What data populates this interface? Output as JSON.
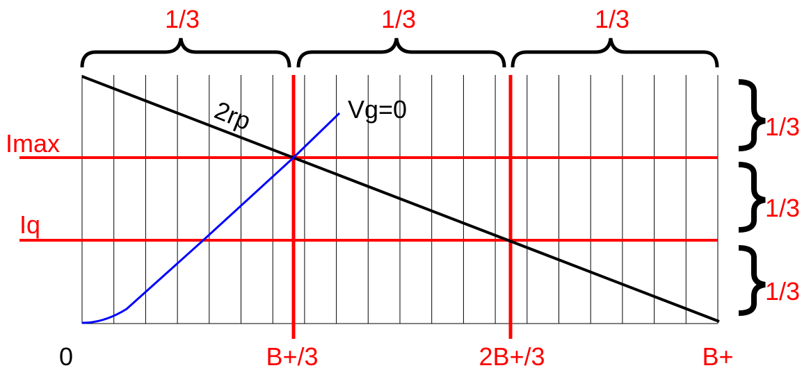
{
  "colors": {
    "grid": "#000000",
    "load_line": "#000000",
    "guides": "#ff0000",
    "curve": "#0000ff",
    "label_red": "#ff0000",
    "label_black": "#000000"
  },
  "labels": {
    "top_fraction_1": "1/3",
    "top_fraction_2": "1/3",
    "top_fraction_3": "1/3",
    "right_fraction_1": "1/3",
    "right_fraction_2": "1/3",
    "right_fraction_3": "1/3",
    "imax": "Imax",
    "iq": "Iq",
    "origin": "0",
    "b_third": "B+/3",
    "two_b_third": "2B+/3",
    "b_plus": "B+",
    "load_line": "2rp",
    "curve": "Vg=0"
  }
}
